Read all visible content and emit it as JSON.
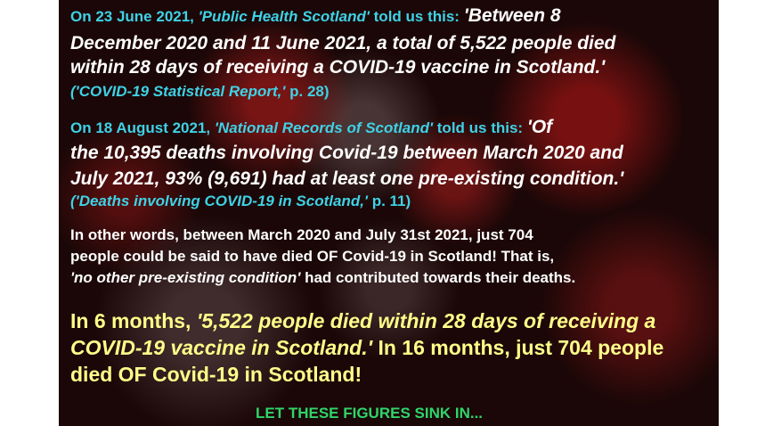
{
  "block1": {
    "l1a": "On 23 June 2021, ",
    "l1b": "'Public Health Scotland'",
    "l1c": " told us this: ",
    "l1d": "'Between 8",
    "l2": "December 2020 and 11 June 2021, a total of 5,522 people died",
    "l3": "within 28 days of receiving a COVID-19 vaccine in Scotland.'",
    "l4a": "('COVID-19 Statistical Report,'",
    "l4b": " p. 28)"
  },
  "block2": {
    "l1a": "On 18 August 2021, ",
    "l1b": "'National Records of Scotland'",
    "l1c": " told us this: ",
    "l1d": "'Of",
    "l2": "the 10,395 deaths involving Covid-19 between March 2020 and",
    "l3": "July 2021, 93% (9,691) had at least one pre-existing condition.'",
    "l4a": "('Deaths involving COVID-19 in Scotland,'",
    "l4b": " p. 11)"
  },
  "block3": {
    "l1": "In other words, between March 2020 and July 31st 2021, just 704",
    "l2": "people could be said to have died OF Covid-19 in Scotland! That is,",
    "l3a": "'no other pre-existing condition'",
    "l3b": " had contributed towards their deaths."
  },
  "block4": {
    "l1a": "In 6 months, ",
    "l1b": "'5,522 people died within 28 days of receiving a",
    "l2a": "COVID-19 vaccine in Scotland.'",
    "l2b": " In 16 months, just 704 people",
    "l3": "died OF Covid-19 in Scotland!"
  },
  "footer": {
    "text": "LET THESE FIGURES SINK IN..."
  }
}
